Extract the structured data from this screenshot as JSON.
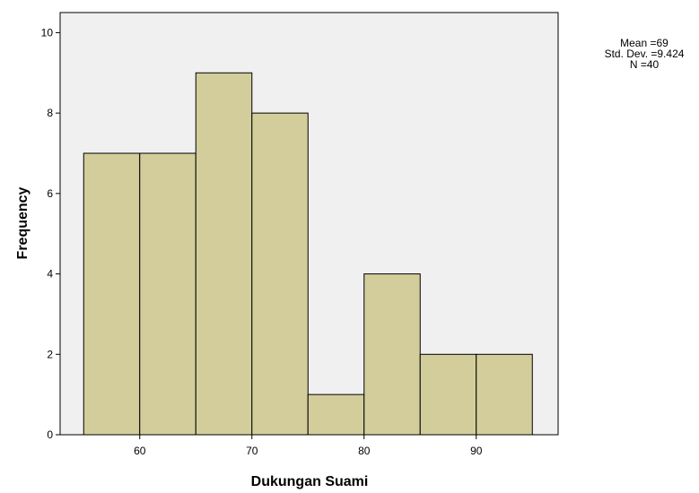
{
  "chart_data": {
    "type": "histogram",
    "xlabel": "Dukungan Suami",
    "ylabel": "Frequency",
    "bins": [
      55,
      60,
      65,
      70,
      75,
      80,
      85,
      90,
      95
    ],
    "values": [
      7,
      7,
      9,
      8,
      1,
      4,
      2,
      2
    ],
    "color": "#d3cd9b",
    "xlim": [
      52.9,
      97.3
    ],
    "xticks": [
      60,
      70,
      80,
      90
    ],
    "ylim": [
      0,
      10.5
    ],
    "yticks": [
      0,
      2,
      4,
      6,
      8,
      10
    ],
    "annotations": [
      "Mean =69",
      "Std. Dev. =9.424",
      "N =40"
    ]
  }
}
